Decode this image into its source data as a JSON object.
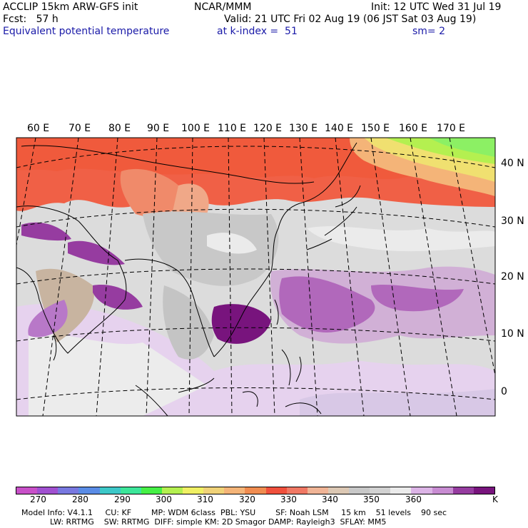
{
  "header": {
    "line1_left": "ACCLIP 15km ARW-GFS init",
    "line1_center": "NCAR/MMM",
    "line1_right": "Init: 12 UTC Wed 31 Jul 19",
    "line2_left": "Fcst:   57 h",
    "line2_right": "Valid: 21 UTC Fri 02 Aug 19 (06 JST Sat 03 Aug 19)",
    "line3_left": "Equivalent potential temperature",
    "line3_center": "at k-index =  51",
    "line3_right": "sm= 2"
  },
  "map": {
    "lon_labels": [
      "60 E",
      "70 E",
      "80 E",
      "90 E",
      "100 E",
      "110 E",
      "120 E",
      "130 E",
      "140 E",
      "150 E",
      "160 E",
      "170 E"
    ],
    "lat_labels": [
      "40 N",
      "30 N",
      "20 N",
      "10 N",
      "0"
    ]
  },
  "colorbar": {
    "colors": [
      "#c850c8",
      "#a050d0",
      "#7878e0",
      "#5a8ce6",
      "#3cc8c8",
      "#3ce69a",
      "#46f046",
      "#b4f050",
      "#f0f064",
      "#f0d278",
      "#f4b478",
      "#f08c50",
      "#f0503c",
      "#f07864",
      "#f0b496",
      "#dcc8b4",
      "#c8c8c8",
      "#d2d2d2",
      "#ebebeb",
      "#dcb4e6",
      "#c88cd2",
      "#963ca0",
      "#78147d"
    ],
    "labels": [
      "270",
      "280",
      "290",
      "300",
      "310",
      "320",
      "330",
      "340",
      "350",
      "360",
      "K"
    ]
  },
  "info": {
    "line1": "Model Info: V4.1.1     CU: KF        MP: WDM 6class  PBL: YSU        SF: Noah LSM     15 km    51 levels    90 sec",
    "line2": "LW: RRTMG    SW: RRTMG  DIFF: simple KM: 2D Smagor DAMP: Rayleigh3  SFLAY: MM5"
  }
}
